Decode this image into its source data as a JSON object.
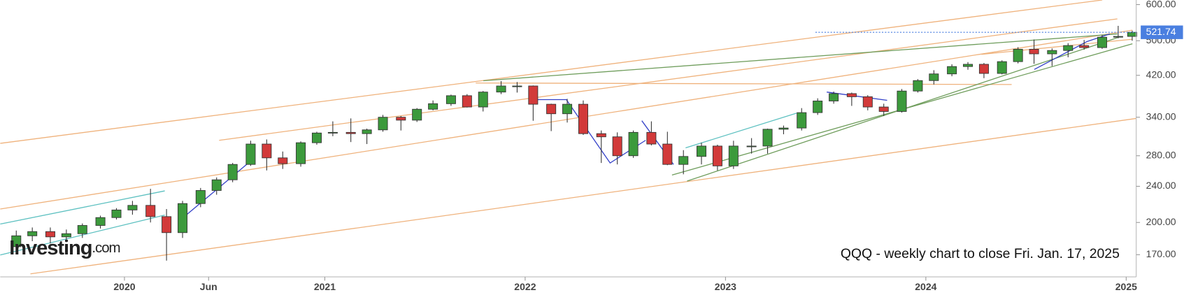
{
  "chart_data": {
    "type": "candlestick",
    "title": "QQQ - weekly chart to close Fri. Jan. 17, 2025",
    "branding": {
      "name": "Investing",
      "suffix": ".com"
    },
    "log_y": true,
    "up_color": "#3c9a3c",
    "down_color": "#d23a3a",
    "last_price": 521.74,
    "last_price_color": "#4a7fe0",
    "xlim": [
      2019.38,
      2025.05
    ],
    "xticks": [
      2020,
      {
        "value": 2020.42,
        "label": "Jun"
      },
      2021,
      2022,
      2023,
      2024,
      2025
    ],
    "ylim": [
      152,
      614
    ],
    "yticks": [
      {
        "value": 170,
        "label": "170.00"
      },
      {
        "value": 200,
        "label": "200.00"
      },
      {
        "value": 240,
        "label": "240.00"
      },
      {
        "value": 280,
        "label": "280.00"
      },
      {
        "value": 340,
        "label": "340.00"
      },
      {
        "value": 420,
        "label": "420.00"
      },
      {
        "value": 500,
        "label": "500.00"
      },
      {
        "value": 600,
        "label": "600.00"
      }
    ],
    "x": [
      2019.46,
      2019.54,
      2019.63,
      2019.71,
      2019.79,
      2019.88,
      2019.96,
      2020.04,
      2020.13,
      2020.21,
      2020.29,
      2020.38,
      2020.46,
      2020.54,
      2020.63,
      2020.71,
      2020.79,
      2020.88,
      2020.96,
      2021.04,
      2021.13,
      2021.21,
      2021.29,
      2021.38,
      2021.46,
      2021.54,
      2021.63,
      2021.71,
      2021.79,
      2021.88,
      2021.96,
      2022.04,
      2022.13,
      2022.21,
      2022.29,
      2022.38,
      2022.46,
      2022.54,
      2022.63,
      2022.71,
      2022.79,
      2022.88,
      2022.96,
      2023.04,
      2023.13,
      2023.21,
      2023.29,
      2023.38,
      2023.46,
      2023.54,
      2023.63,
      2023.71,
      2023.79,
      2023.88,
      2023.96,
      2024.04,
      2024.13,
      2024.21,
      2024.29,
      2024.38,
      2024.46,
      2024.54,
      2024.63,
      2024.71,
      2024.79,
      2024.88,
      2024.96,
      2025.03
    ],
    "open": [
      177,
      187,
      191,
      186,
      189,
      197,
      205,
      213,
      218,
      206,
      190,
      220,
      235,
      248,
      268,
      297,
      277,
      269,
      299,
      314,
      315,
      313,
      319,
      340,
      335,
      354,
      364,
      379,
      358,
      386,
      398,
      398,
      363,
      346,
      363,
      313,
      308,
      280,
      315,
      297,
      268,
      279,
      294,
      266,
      294,
      294,
      320,
      322,
      348,
      369,
      383,
      377,
      358,
      350,
      388,
      409,
      423,
      439,
      444,
      424,
      450,
      479,
      468,
      476,
      488,
      483,
      509,
      511
    ],
    "high": [
      192,
      195,
      195,
      193,
      199,
      207,
      215,
      223,
      237,
      214,
      223,
      238,
      251,
      270,
      302,
      304,
      286,
      301,
      316,
      333,
      338,
      321,
      344,
      342,
      356,
      370,
      381,
      382,
      388,
      408,
      406,
      399,
      364,
      373,
      370,
      318,
      315,
      318,
      333,
      316,
      288,
      299,
      296,
      302,
      306,
      321,
      326,
      356,
      374,
      387,
      385,
      380,
      364,
      392,
      412,
      431,
      444,
      449,
      447,
      453,
      484,
      503,
      481,
      494,
      502,
      515,
      539,
      526
    ],
    "low": [
      173,
      182,
      180,
      181,
      185,
      194,
      203,
      208,
      200,
      165,
      185,
      216,
      230,
      245,
      266,
      260,
      262,
      265,
      296,
      309,
      300,
      297,
      316,
      318,
      332,
      352,
      360,
      357,
      350,
      382,
      385,
      334,
      317,
      331,
      311,
      270,
      268,
      277,
      295,
      267,
      255,
      268,
      260,
      262,
      283,
      283,
      312,
      318,
      344,
      364,
      360,
      352,
      342,
      348,
      385,
      401,
      418,
      432,
      414,
      422,
      446,
      445,
      440,
      460,
      478,
      480,
      506,
      500
    ],
    "close": [
      187,
      191,
      186,
      189,
      197,
      205,
      213,
      218,
      206,
      190,
      220,
      235,
      248,
      268,
      297,
      277,
      269,
      299,
      314,
      315,
      313,
      319,
      340,
      335,
      354,
      364,
      379,
      358,
      386,
      398,
      398,
      363,
      346,
      363,
      313,
      308,
      280,
      315,
      297,
      268,
      279,
      294,
      266,
      294,
      294,
      320,
      322,
      348,
      369,
      383,
      377,
      358,
      350,
      388,
      409,
      423,
      439,
      444,
      424,
      450,
      479,
      468,
      476,
      488,
      483,
      509,
      511,
      521.74
    ]
  }
}
